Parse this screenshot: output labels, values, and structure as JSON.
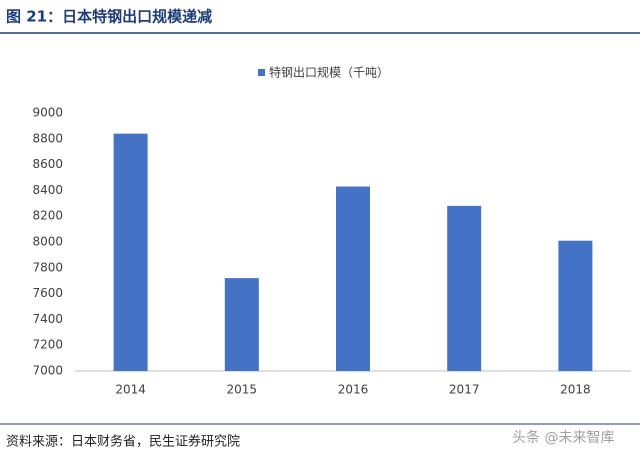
{
  "chart_data": {
    "type": "bar",
    "title": "图 21：日本特钢出口规模递减",
    "series": [
      {
        "name": "特钢出口规模（千吨）",
        "color": "#4472c4",
        "values": [
          8840,
          7720,
          8430,
          8280,
          8010
        ]
      }
    ],
    "categories": [
      "2014",
      "2015",
      "2016",
      "2017",
      "2018"
    ],
    "ylim": [
      7000,
      9000
    ],
    "yticks": [
      7000,
      7200,
      7400,
      7600,
      7800,
      8000,
      8200,
      8400,
      8600,
      8800,
      9000
    ],
    "grid": false,
    "legend": "top",
    "source": "资料来源：日本财务省，民生证券研究院",
    "watermark": "头条 @未来智库"
  }
}
